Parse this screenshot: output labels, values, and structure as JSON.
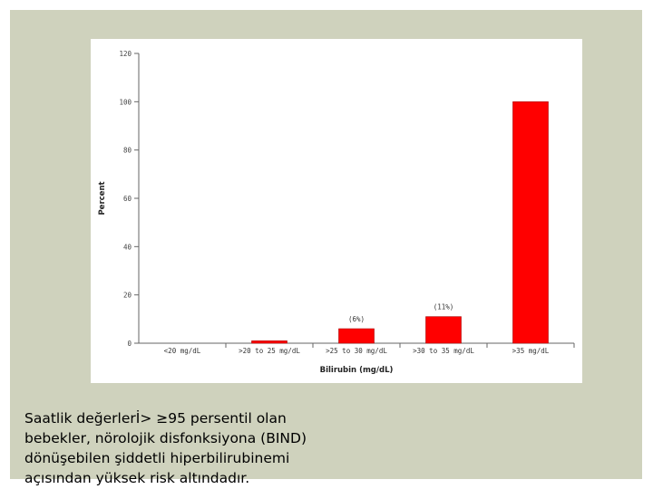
{
  "caption": {
    "line1": "Saatlik değerlerİ> ≥95 persentil olan",
    "line2": "bebekler, nörolojik disfonksiyona (BIND)",
    "line3": "dönüşebilen şiddetli hiperbilirubinemi",
    "line4": "açısından yüksek risk altındadır."
  },
  "chart_data": {
    "type": "bar",
    "categories": [
      "<20 mg/dL",
      ">20 to 25 mg/dL",
      ">25 to 30 mg/dL",
      ">30 to 35 mg/dL",
      ">35 mg/dL"
    ],
    "values": [
      0,
      1,
      6,
      11,
      100
    ],
    "data_labels": [
      "",
      "",
      "(6%)",
      "(11%)",
      ""
    ],
    "xlabel": "Bilirubin (mg/dL)",
    "ylabel": "Percent",
    "ylim": [
      0,
      120
    ],
    "yticks": [
      0,
      20,
      40,
      60,
      80,
      100,
      120
    ],
    "grid": false,
    "legend": "none",
    "bar_color": "#ff0000",
    "bar_edge_color": "#aa0000"
  }
}
